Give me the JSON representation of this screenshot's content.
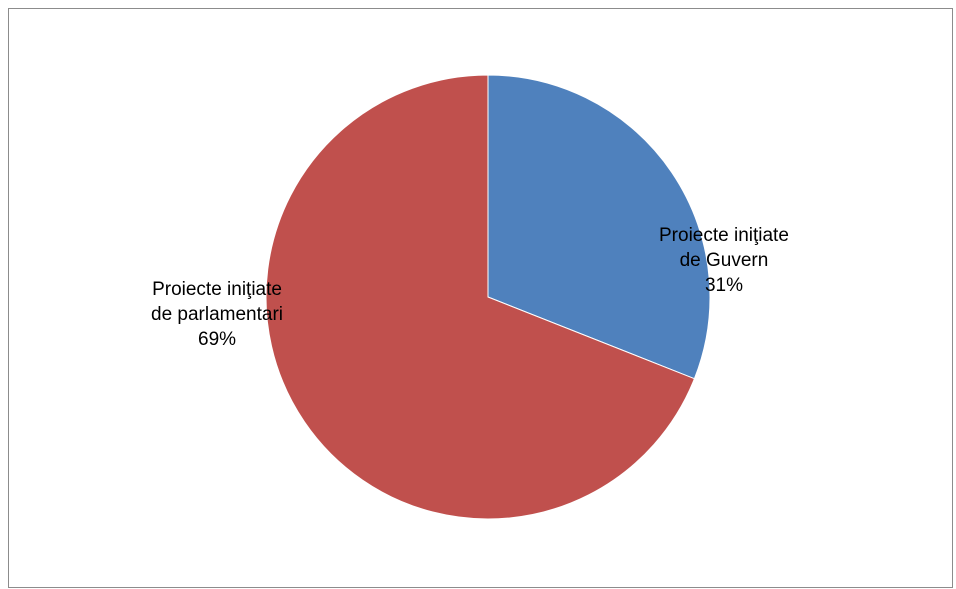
{
  "chart_data": {
    "type": "pie",
    "title": "",
    "start_angle_deg": 90,
    "slices": [
      {
        "name_line1": "Proiecte iniţiate",
        "name_line2": "de Guvern",
        "value": 31,
        "value_label": "31%",
        "color": "#4f81bd"
      },
      {
        "name_line1": "Proiecte iniţiate",
        "name_line2": "de parlamentari",
        "value": 69,
        "value_label": "69%",
        "color": "#c0504d"
      }
    ],
    "legend": "none"
  }
}
